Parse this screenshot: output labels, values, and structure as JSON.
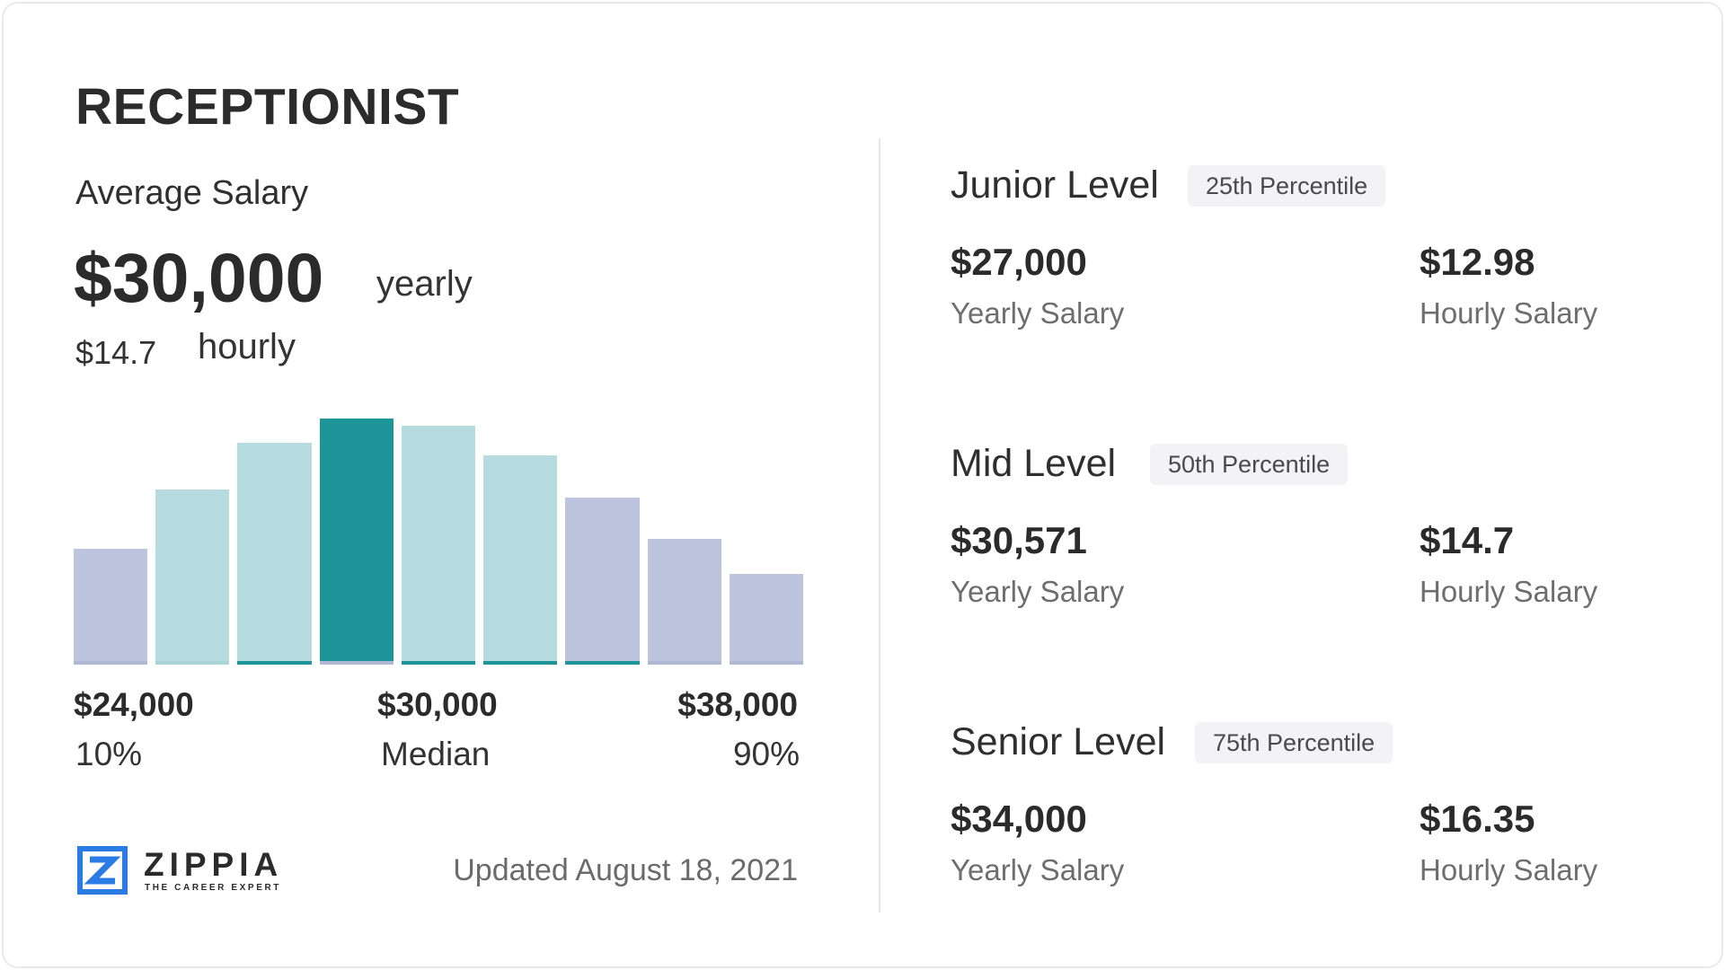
{
  "card": {
    "job_title": "RECEPTIONIST",
    "average": {
      "label": "Average Salary",
      "yearly_value": "$30,000",
      "yearly_unit": "yearly",
      "hourly_value": "$14.7",
      "hourly_unit": "hourly"
    },
    "chart_data": {
      "type": "bar",
      "title": "",
      "xlabel": "",
      "ylabel": "",
      "categories": [
        "1",
        "2",
        "3",
        "4",
        "5",
        "6",
        "7",
        "8",
        "9"
      ],
      "values": [
        0.47,
        0.71,
        0.9,
        1.0,
        0.97,
        0.85,
        0.68,
        0.51,
        0.37
      ],
      "ylim": [
        0,
        1
      ],
      "highlight_index": 3,
      "grid": false,
      "axis_ticks": [
        {
          "value": "$24,000",
          "label": "10%"
        },
        {
          "value": "$30,000",
          "label": "Median"
        },
        {
          "value": "$38,000",
          "label": "90%"
        }
      ],
      "colors": {
        "outer": "#bcc4de",
        "inner": "#b6dcdf",
        "median": "#1e9699"
      }
    },
    "brand": {
      "name": "ZIPPIA",
      "tagline": "THE CAREER EXPERT",
      "logo_icon": "zippia-z-logo-icon",
      "logo_color": "#2a7be4"
    },
    "updated": "Updated August 18, 2021",
    "levels": [
      {
        "name": "Junior Level",
        "percentile": "25th Percentile",
        "yearly": "$27,000",
        "yearly_label": "Yearly Salary",
        "hourly": "$12.98",
        "hourly_label": "Hourly Salary"
      },
      {
        "name": "Mid Level",
        "percentile": "50th Percentile",
        "yearly": "$30,571",
        "yearly_label": "Yearly Salary",
        "hourly": "$14.7",
        "hourly_label": "Hourly Salary"
      },
      {
        "name": "Senior Level",
        "percentile": "75th Percentile",
        "yearly": "$34,000",
        "yearly_label": "Yearly Salary",
        "hourly": "$16.35",
        "hourly_label": "Hourly Salary"
      }
    ]
  }
}
